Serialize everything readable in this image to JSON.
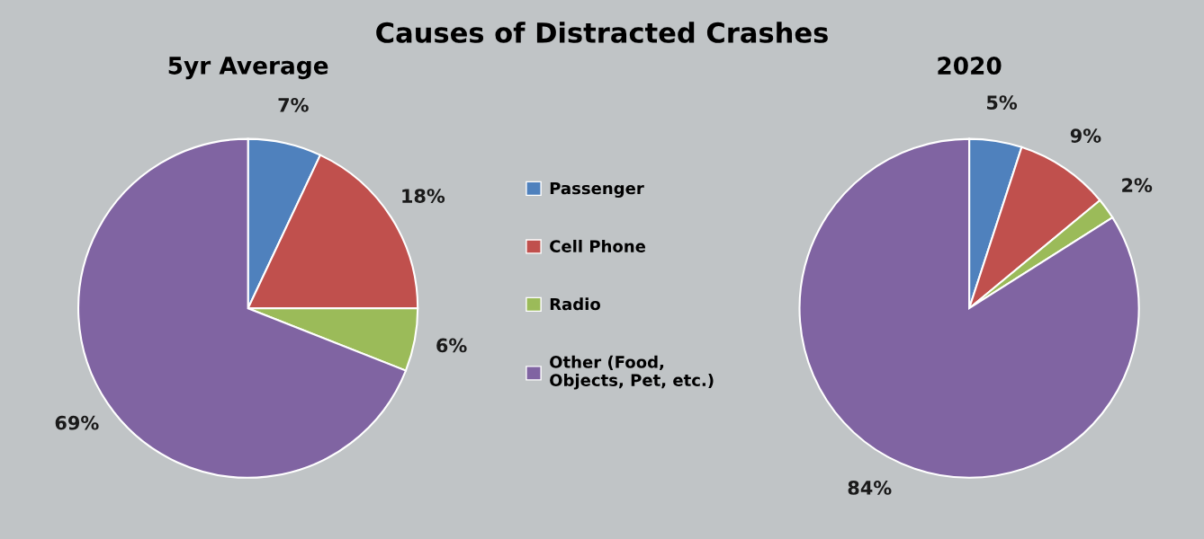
{
  "chart_data": [
    {
      "type": "pie",
      "title": "5yr Average",
      "annotations": [
        "Causes of Distracted Crashes"
      ],
      "categories": [
        "Passenger",
        "Cell Phone",
        "Radio",
        "Other (Food,\nObjects, Pet, etc.)"
      ],
      "values": [
        7,
        18,
        6,
        69
      ],
      "value_labels": [
        "7%",
        "18%",
        "6%",
        "69%"
      ],
      "colors": [
        "#4f81bd",
        "#c0504d",
        "#9bbb59",
        "#8064a2"
      ],
      "legend": "right"
    },
    {
      "type": "pie",
      "title": "2020",
      "values": [
        5,
        9,
        2,
        84
      ],
      "value_labels": [
        "5%",
        "9%",
        "2%",
        "84%"
      ],
      "colors": [
        "#4f81bd",
        "#c0504d",
        "#9bbb59",
        "#8064a2"
      ]
    }
  ]
}
